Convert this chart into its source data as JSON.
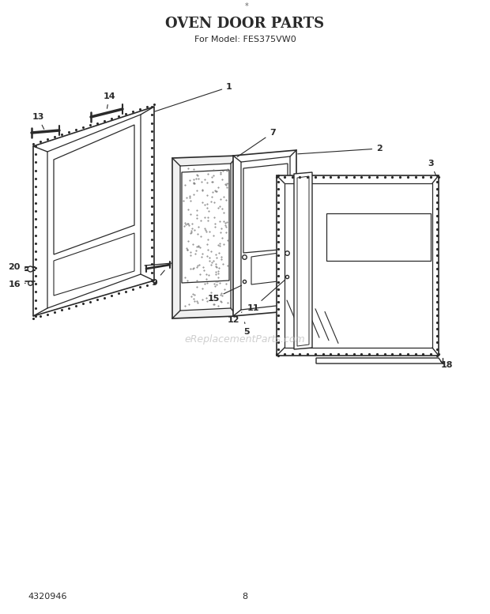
{
  "title": "OVEN DOOR PARTS",
  "subtitle": "For Model: FES375VW0",
  "page_number": "8",
  "part_number": "4320946",
  "background_color": "#ffffff",
  "line_color": "#2a2a2a",
  "watermark": "eReplacementParts.com",
  "title_fontsize": 13,
  "subtitle_fontsize": 8,
  "label_fontsize": 8
}
